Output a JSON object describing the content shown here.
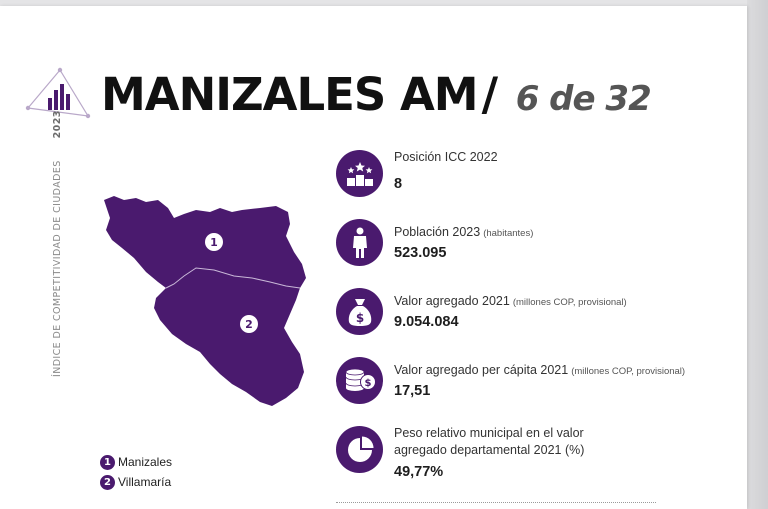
{
  "header": {
    "title": "MANIZALES AM",
    "slash": "/",
    "rank": "6 de 32"
  },
  "side_text": {
    "label": "ÍNDICE DE COMPETITIVIDAD DE CIUDADES",
    "year": "2023"
  },
  "map": {
    "regions": [
      {
        "number": "1",
        "name": "Manizales"
      },
      {
        "number": "2",
        "name": "Villamaría"
      }
    ],
    "fill_color": "#4a1a6e"
  },
  "legend": [
    {
      "number": "1",
      "label": "Manizales"
    },
    {
      "number": "2",
      "label": "Villamaría"
    }
  ],
  "stats": [
    {
      "icon": "podium-stars-icon",
      "label": "Posición ICC 2022",
      "note": "",
      "value": "8"
    },
    {
      "icon": "person-icon",
      "label": "Población 2023",
      "note": "(habitantes)",
      "value": "523.095"
    },
    {
      "icon": "money-bag-icon",
      "label": "Valor agregado 2021",
      "note": "(millones COP, provisional)",
      "value": "9.054.084"
    },
    {
      "icon": "coins-stack-icon",
      "label": "Valor agregado per cápita 2021",
      "note": "(millones COP, provisional)",
      "value": "17,51"
    },
    {
      "icon": "pie-chart-icon",
      "label_line1": "Peso relativo municipal en el valor",
      "label_line2": "agregado departamental 2021 (%)",
      "value": "49,77%"
    }
  ],
  "colors": {
    "accent": "#4a1a6e"
  }
}
